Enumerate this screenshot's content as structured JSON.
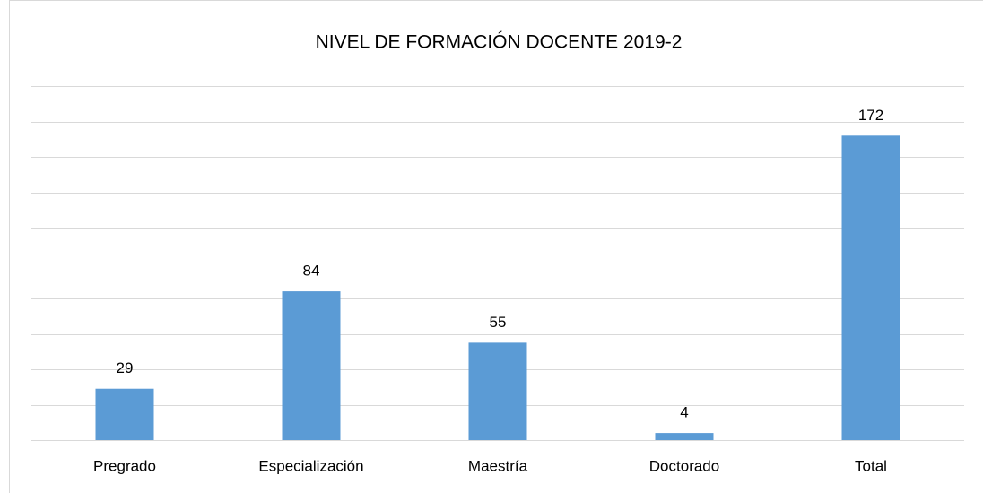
{
  "chart_data": {
    "type": "bar",
    "title": "NIVEL DE FORMACIÓN DOCENTE 2019-2",
    "categories": [
      "Pregrado",
      "Especialización",
      "Maestría",
      "Doctorado",
      "Total"
    ],
    "values": [
      29,
      84,
      55,
      4,
      172
    ],
    "color": "#5b9bd5",
    "ylim": [
      0,
      200
    ],
    "yticks": [
      0,
      20,
      40,
      60,
      80,
      100,
      120,
      140,
      160,
      180,
      200
    ],
    "grid": true
  }
}
